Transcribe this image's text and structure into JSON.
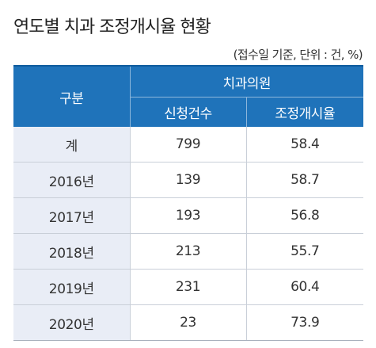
{
  "title": "연도별 치과 조정개시율 현황",
  "unit_note": "(접수일 기준, 단위 : 건, %)",
  "table": {
    "header_rowhead": "구분",
    "header_group": "치과의원",
    "header_cols": [
      "신청건수",
      "조정개시율"
    ],
    "rows": [
      {
        "label": "계",
        "applications": "799",
        "rate": "58.4"
      },
      {
        "label": "2016년",
        "applications": "139",
        "rate": "58.7"
      },
      {
        "label": "2017년",
        "applications": "193",
        "rate": "56.8"
      },
      {
        "label": "2018년",
        "applications": "213",
        "rate": "55.7"
      },
      {
        "label": "2019년",
        "applications": "231",
        "rate": "60.4"
      },
      {
        "label": "2020년",
        "applications": "23",
        "rate": "73.9"
      }
    ]
  },
  "colors": {
    "header_bg": "#1f73ba",
    "rowhead_bg": "#e9edf6"
  }
}
